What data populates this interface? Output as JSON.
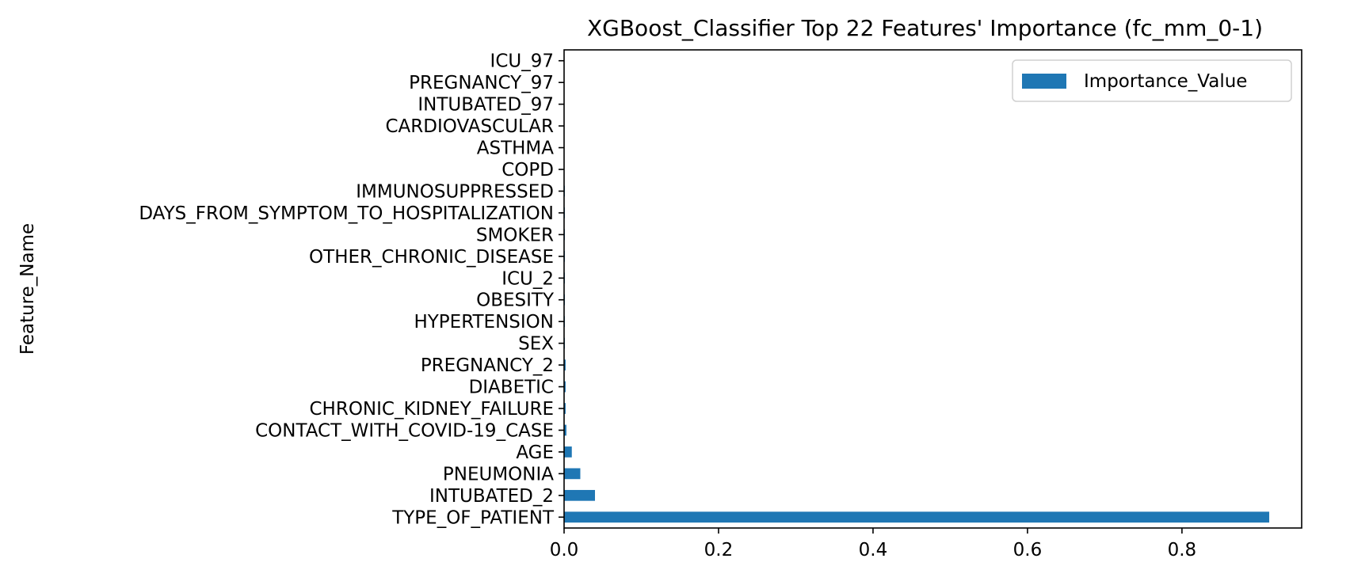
{
  "chart_data": {
    "type": "bar",
    "orientation": "horizontal",
    "title": "XGBoost_Classifier Top 22 Features' Importance (fc_mm_0-1)",
    "xlabel": "",
    "ylabel": "Feature_Name",
    "categories": [
      "TYPE_OF_PATIENT",
      "INTUBATED_2",
      "PNEUMONIA",
      "AGE",
      "CONTACT_WITH_COVID-19_CASE",
      "CHRONIC_KIDNEY_FAILURE",
      "DIABETIC",
      "PREGNANCY_2",
      "SEX",
      "HYPERTENSION",
      "OBESITY",
      "ICU_2",
      "OTHER_CHRONIC_DISEASE",
      "SMOKER",
      "DAYS_FROM_SYMPTOM_TO_HOSPITALIZATION",
      "IMMUNOSUPPRESSED",
      "COPD",
      "ASTHMA",
      "CARDIOVASCULAR",
      "INTUBATED_97",
      "PREGNANCY_97",
      "ICU_97"
    ],
    "series": [
      {
        "name": "Importance_Value",
        "values": [
          0.913,
          0.04,
          0.021,
          0.01,
          0.003,
          0.002,
          0.002,
          0.002,
          0.001,
          0.001,
          0.001,
          0.001,
          0.001,
          0.001,
          0.001,
          0.001,
          0.0005,
          0.0005,
          0.0005,
          0.0,
          0.0,
          0.0
        ]
      }
    ],
    "xlim": [
      0,
      0.955
    ],
    "xticks": [
      0.0,
      0.2,
      0.4,
      0.6,
      0.8
    ],
    "xtick_labels": [
      "0.0",
      "0.2",
      "0.4",
      "0.6",
      "0.8"
    ],
    "grid": false,
    "legend_position": "top-right",
    "colors": {
      "bar": "#1f77b4"
    }
  }
}
